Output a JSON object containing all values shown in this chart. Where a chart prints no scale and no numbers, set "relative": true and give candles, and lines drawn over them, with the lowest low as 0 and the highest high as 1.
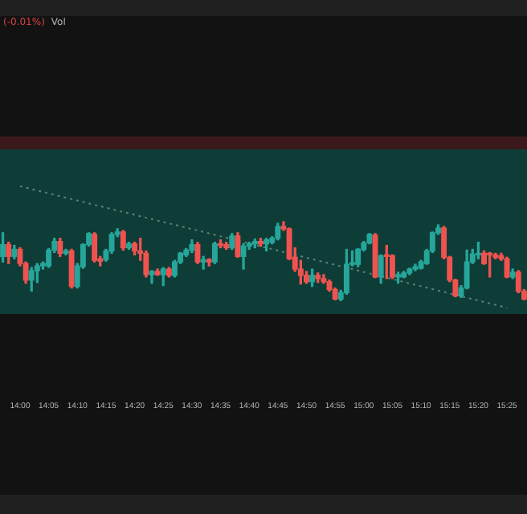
{
  "chart_data": {
    "type": "candlestick",
    "relative": true,
    "legend": false,
    "grid": false,
    "categories": [
      null,
      null,
      null,
      "14:00",
      null,
      null,
      null,
      null,
      "14:05",
      null,
      null,
      null,
      null,
      "14:10",
      null,
      null,
      null,
      null,
      "14:15",
      null,
      null,
      null,
      null,
      "14:20",
      null,
      null,
      null,
      null,
      "14:25",
      null,
      null,
      null,
      null,
      "14:30",
      null,
      null,
      null,
      null,
      "14:35",
      null,
      null,
      null,
      null,
      "14:40",
      null,
      null,
      null,
      null,
      "14:45",
      null,
      null,
      null,
      null,
      "14:50",
      null,
      null,
      null,
      null,
      "14:55",
      null,
      null,
      null,
      null,
      "15:00",
      null,
      null,
      null,
      null,
      "15:05",
      null,
      null,
      null,
      null,
      "15:10",
      null,
      null,
      null,
      null,
      "15:15",
      null,
      null,
      null,
      null,
      "15:20",
      null,
      null,
      null,
      null,
      "15:25",
      null,
      null,
      null
    ],
    "ohlc": [
      [
        0.56,
        0.86,
        0.49,
        0.71
      ],
      [
        0.71,
        0.74,
        0.47,
        0.56
      ],
      [
        0.56,
        0.7,
        0.53,
        0.65
      ],
      [
        0.65,
        0.67,
        0.44,
        0.47
      ],
      [
        0.47,
        0.49,
        0.22,
        0.26
      ],
      [
        0.26,
        0.42,
        0.12,
        0.38
      ],
      [
        0.38,
        0.47,
        0.23,
        0.44
      ],
      [
        0.44,
        0.49,
        0.4,
        0.47
      ],
      [
        0.44,
        0.66,
        0.42,
        0.64
      ],
      [
        0.64,
        0.79,
        0.61,
        0.75
      ],
      [
        0.75,
        0.79,
        0.56,
        0.6
      ],
      [
        0.6,
        0.65,
        0.58,
        0.63
      ],
      [
        0.63,
        0.65,
        0.16,
        0.18
      ],
      [
        0.18,
        0.47,
        0.16,
        0.44
      ],
      [
        0.43,
        0.72,
        0.41,
        0.71
      ],
      [
        0.71,
        0.86,
        0.69,
        0.85
      ],
      [
        0.84,
        0.86,
        0.49,
        0.51
      ],
      [
        0.53,
        0.56,
        0.44,
        0.5
      ],
      [
        0.52,
        0.65,
        0.5,
        0.63
      ],
      [
        0.63,
        0.86,
        0.6,
        0.84
      ],
      [
        0.84,
        0.91,
        0.81,
        0.87
      ],
      [
        0.87,
        0.89,
        0.64,
        0.67
      ],
      [
        0.67,
        0.74,
        0.65,
        0.72
      ],
      [
        0.72,
        0.74,
        0.58,
        0.63
      ],
      [
        0.63,
        0.79,
        0.51,
        0.6
      ],
      [
        0.6,
        0.63,
        0.3,
        0.33
      ],
      [
        0.33,
        0.38,
        0.22,
        0.37
      ],
      [
        0.37,
        0.4,
        0.32,
        0.33
      ],
      [
        0.33,
        0.42,
        0.19,
        0.4
      ],
      [
        0.4,
        0.42,
        0.3,
        0.32
      ],
      [
        0.32,
        0.51,
        0.3,
        0.49
      ],
      [
        0.49,
        0.61,
        0.47,
        0.6
      ],
      [
        0.58,
        0.66,
        0.56,
        0.64
      ],
      [
        0.64,
        0.77,
        0.61,
        0.71
      ],
      [
        0.71,
        0.74,
        0.47,
        0.49
      ],
      [
        0.49,
        0.56,
        0.4,
        0.52
      ],
      [
        0.52,
        0.53,
        0.44,
        0.49
      ],
      [
        0.49,
        0.74,
        0.47,
        0.72
      ],
      [
        0.72,
        0.77,
        0.67,
        0.7
      ],
      [
        0.71,
        0.74,
        0.65,
        0.67
      ],
      [
        0.67,
        0.85,
        0.65,
        0.82
      ],
      [
        0.82,
        0.86,
        0.55,
        0.56
      ],
      [
        0.56,
        0.72,
        0.4,
        0.69
      ],
      [
        0.69,
        0.74,
        0.65,
        0.72
      ],
      [
        0.72,
        0.78,
        0.67,
        0.75
      ],
      [
        0.75,
        0.79,
        0.69,
        0.72
      ],
      [
        0.72,
        0.79,
        0.63,
        0.77
      ],
      [
        0.74,
        0.81,
        0.72,
        0.79
      ],
      [
        0.79,
        0.98,
        0.77,
        0.94
      ],
      [
        0.94,
        1,
        0.89,
        0.91
      ],
      [
        0.91,
        0.92,
        0.52,
        0.53
      ],
      [
        0.55,
        0.67,
        0.37,
        0.4
      ],
      [
        0.4,
        0.51,
        0.21,
        0.32
      ],
      [
        0.32,
        0.37,
        0.22,
        0.24
      ],
      [
        0.24,
        0.4,
        0.18,
        0.32
      ],
      [
        0.32,
        0.35,
        0.23,
        0.28
      ],
      [
        0.28,
        0.33,
        0.22,
        0.24
      ],
      [
        0.24,
        0.26,
        0.12,
        0.14
      ],
      [
        0.14,
        0.16,
        0.01,
        0.02
      ],
      [
        0.02,
        0.13,
        0,
        0.1
      ],
      [
        0.1,
        0.65,
        0.08,
        0.46
      ],
      [
        0.46,
        0.63,
        0.44,
        0.47
      ],
      [
        0.46,
        0.66,
        0.43,
        0.65
      ],
      [
        0.65,
        0.75,
        0.63,
        0.73
      ],
      [
        0.73,
        0.85,
        0.72,
        0.84
      ],
      [
        0.83,
        0.85,
        0.29,
        0.3
      ],
      [
        0.3,
        0.58,
        0.22,
        0.57
      ],
      [
        0.58,
        0.7,
        0.28,
        0.56
      ],
      [
        0.57,
        0.58,
        0.28,
        0.3
      ],
      [
        0.3,
        0.36,
        0.22,
        0.33
      ],
      [
        0.3,
        0.37,
        0.29,
        0.35
      ],
      [
        0.35,
        0.41,
        0.33,
        0.4
      ],
      [
        0.4,
        0.46,
        0.38,
        0.43
      ],
      [
        0.41,
        0.51,
        0.4,
        0.49
      ],
      [
        0.47,
        0.65,
        0.46,
        0.63
      ],
      [
        0.63,
        0.87,
        0.61,
        0.86
      ],
      [
        0.86,
        0.96,
        0.84,
        0.92
      ],
      [
        0.92,
        0.94,
        0.53,
        0.55
      ],
      [
        0.55,
        0.56,
        0.24,
        0.26
      ],
      [
        0.26,
        0.27,
        0.05,
        0.06
      ],
      [
        0.06,
        0.19,
        0.04,
        0.16
      ],
      [
        0.16,
        0.64,
        0.15,
        0.49
      ],
      [
        0.49,
        0.65,
        0.47,
        0.59
      ],
      [
        0.58,
        0.74,
        0.53,
        0.6
      ],
      [
        0.6,
        0.63,
        0.46,
        0.47
      ],
      [
        0.6,
        0.61,
        0.3,
        0.58
      ],
      [
        0.58,
        0.6,
        0.53,
        0.55
      ],
      [
        0.57,
        0.6,
        0.51,
        0.53
      ],
      [
        0.53,
        0.55,
        0.29,
        0.3
      ],
      [
        0.3,
        0.4,
        0.28,
        0.36
      ],
      [
        0.36,
        0.38,
        0.1,
        0.12
      ],
      [
        0.12,
        0.14,
        0.01,
        0.02
      ]
    ],
    "colors": [
      "#26a69a",
      "#ef5350",
      "#26a69a",
      "#ef5350",
      "#ef5350",
      "#26a69a",
      "#26a69a",
      "#26a69a",
      "#26a69a",
      "#26a69a",
      "#ef5350",
      "#26a69a",
      "#ef5350",
      "#26a69a",
      "#26a69a",
      "#26a69a",
      "#ef5350",
      "#ef5350",
      "#26a69a",
      "#26a69a",
      "#26a69a",
      "#ef5350",
      "#26a69a",
      "#ef5350",
      "#ef5350",
      "#ef5350",
      "#26a69a",
      "#ef5350",
      "#26a69a",
      "#ef5350",
      "#26a69a",
      "#26a69a",
      "#26a69a",
      "#26a69a",
      "#ef5350",
      "#26a69a",
      "#ef5350",
      "#26a69a",
      "#ef5350",
      "#ef5350",
      "#26a69a",
      "#ef5350",
      "#26a69a",
      "#26a69a",
      "#26a69a",
      "#ef5350",
      "#26a69a",
      "#26a69a",
      "#26a69a",
      "#ef5350",
      "#ef5350",
      "#ef5350",
      "#ef5350",
      "#ef5350",
      "#26a69a",
      "#ef5350",
      "#ef5350",
      "#ef5350",
      "#ef5350",
      "#26a69a",
      "#26a69a",
      "#26a69a",
      "#26a69a",
      "#26a69a",
      "#26a69a",
      "#ef5350",
      "#26a69a",
      "#ef5350",
      "#ef5350",
      "#26a69a",
      "#26a69a",
      "#26a69a",
      "#26a69a",
      "#26a69a",
      "#26a69a",
      "#26a69a",
      "#26a69a",
      "#ef5350",
      "#ef5350",
      "#ef5350",
      "#26a69a",
      "#26a69a",
      "#26a69a",
      "#26a69a",
      "#ef5350",
      "#ef5350",
      "#ef5350",
      "#ef5350",
      "#ef5350",
      "#26a69a",
      "#ef5350",
      "#ef5350"
    ],
    "series": [
      {
        "type": "line",
        "x": [
          "14:00",
          "15:25"
        ],
        "values": [
          1.45,
          -0.09
        ],
        "color": "#5e7f79",
        "line_style": "dotted"
      }
    ],
    "bands": [
      {
        "axis": "y",
        "from": -0.17,
        "to": 1.92,
        "color": "#0e3c36"
      },
      {
        "axis": "y",
        "from": 1.92,
        "to": 2.08,
        "color": "#3b191b"
      }
    ],
    "annotations": [
      "(-0.01%)",
      "Vol"
    ]
  }
}
